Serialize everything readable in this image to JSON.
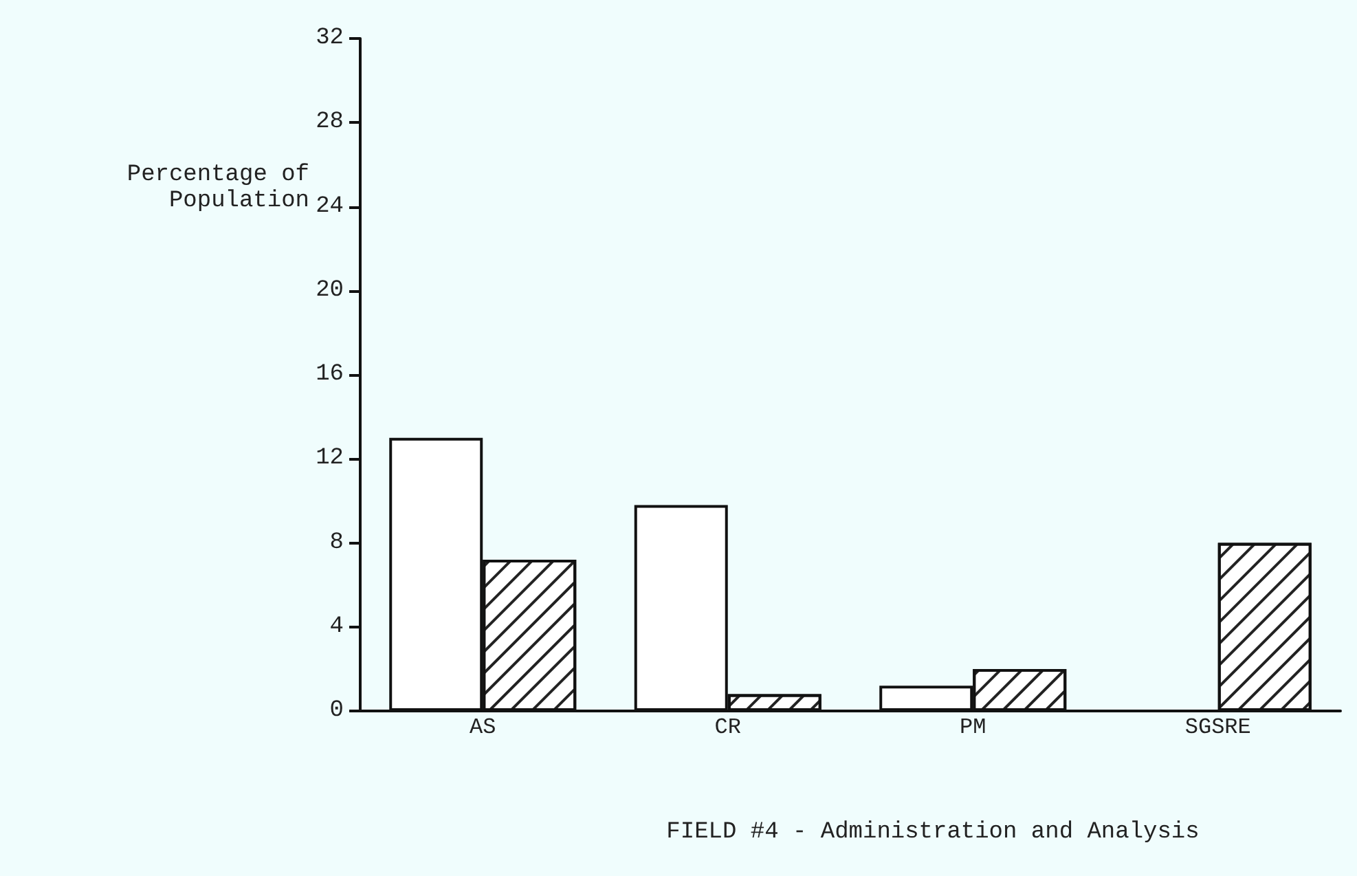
{
  "chart_data": {
    "type": "bar",
    "xlabel": "FIELD #4 - Administration and Analysis",
    "ylabel": "Percentage of Population",
    "categories": [
      "AS",
      "CR",
      "PM",
      "SGSRE"
    ],
    "series": [
      {
        "color": "#ffffff",
        "values": [
          13,
          9.8,
          1.2,
          null
        ]
      },
      {
        "color": "#ffffff",
        "values": [
          7.2,
          0.8,
          2,
          8
        ]
      }
    ],
    "ylim": [
      0,
      32
    ],
    "yticks": [
      0,
      4,
      8,
      12,
      16,
      20,
      24,
      28,
      32
    ],
    "grid": false
  }
}
